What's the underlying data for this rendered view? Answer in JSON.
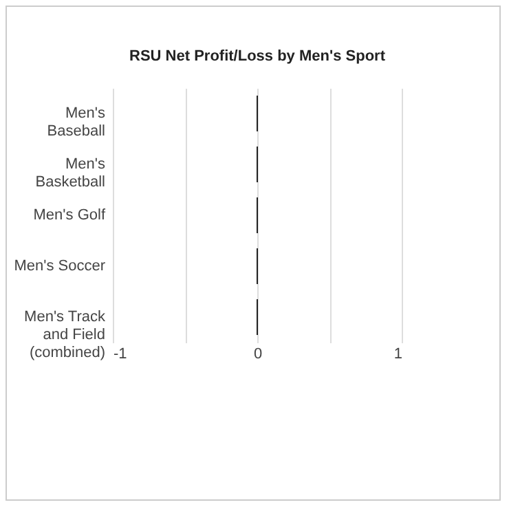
{
  "chart_data": {
    "type": "bar",
    "orientation": "horizontal",
    "title": "RSU Net Profit/Loss by Men's Sport",
    "categories": [
      "Men's Baseball",
      "Men's Basketball",
      "Men's Golf",
      "Men's Soccer",
      "Men's Track and Field (combined)"
    ],
    "values": [
      0,
      0,
      0,
      0,
      0
    ],
    "color": "#222222",
    "xlim": [
      -1,
      1
    ],
    "xticks": [
      -1,
      {
        "value": -0.5,
        "label": null
      },
      0,
      {
        "value": 0.5,
        "label": null
      },
      1
    ],
    "grid": "x"
  }
}
